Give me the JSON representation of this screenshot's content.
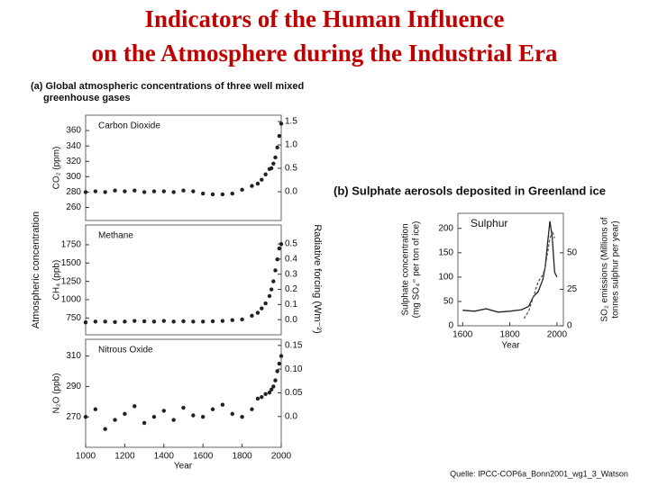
{
  "title": [
    "Indicators of the Human Influence",
    "on the Atmosphere during the Industrial Era"
  ],
  "panel_a": {
    "heading": [
      "(a) Global atmospheric concentrations of three well mixed",
      "greenhouse gases"
    ],
    "ylabel": "Atmospheric concentration",
    "y2label": "Radiative forcing  (Wm⁻²)",
    "xlabel": "Year"
  },
  "panel_b": {
    "heading": "(b)  Sulphate aerosols deposited in Greenland ice"
  },
  "source": "Quelle: IPCC-COP6a_Bonn2001_wg1_3_Watson",
  "chart_data": [
    {
      "type": "scatter",
      "label": "Carbon Dioxide",
      "ylabel": "CO₂  (ppm)",
      "xlim": [
        1000,
        2000
      ],
      "ylim": [
        243,
        380
      ],
      "yticks": [
        260,
        280,
        300,
        320,
        340,
        360
      ],
      "y2lim": [
        -0.615,
        1.635
      ],
      "y2ticks": [
        {
          "value": 0,
          "label": "0.0"
        },
        0.5,
        {
          "value": 1,
          "label": "1.0"
        },
        1.5
      ],
      "series": [
        {
          "color": "#222222",
          "x": [
            1000,
            1050,
            1100,
            1150,
            1200,
            1250,
            1300,
            1350,
            1400,
            1450,
            1500,
            1550,
            1600,
            1650,
            1700,
            1750,
            1800,
            1850,
            1880,
            1900,
            1920,
            1940,
            1950,
            1960,
            1970,
            1980,
            1990,
            2000
          ],
          "values": [
            280,
            281,
            280,
            282,
            281,
            282,
            280,
            281,
            281,
            280,
            282,
            281,
            278,
            277,
            277,
            278,
            283,
            288,
            291,
            296,
            303,
            310,
            311,
            317,
            325,
            338,
            353,
            369
          ]
        }
      ]
    },
    {
      "type": "scatter",
      "label": "Methane",
      "ylabel": "CH₄  (ppb)",
      "xlim": [
        1000,
        2000
      ],
      "ylim": [
        520,
        2020
      ],
      "yticks": [
        750,
        1000,
        1250,
        1500,
        1750
      ],
      "y2lim": [
        -0.1,
        0.625
      ],
      "y2ticks": [
        {
          "value": 0,
          "label": "0.0"
        },
        0.1,
        0.2,
        0.3,
        0.4,
        0.5
      ],
      "series": [
        {
          "color": "#222222",
          "x": [
            1000,
            1050,
            1100,
            1150,
            1200,
            1250,
            1300,
            1350,
            1400,
            1450,
            1500,
            1550,
            1600,
            1650,
            1700,
            1750,
            1800,
            1850,
            1880,
            1900,
            1920,
            1940,
            1950,
            1960,
            1970,
            1980,
            1990,
            2000
          ],
          "values": [
            690,
            700,
            700,
            695,
            700,
            710,
            705,
            700,
            710,
            700,
            705,
            700,
            700,
            705,
            710,
            720,
            730,
            780,
            820,
            880,
            950,
            1050,
            1140,
            1250,
            1400,
            1550,
            1700,
            1760
          ]
        }
      ]
    },
    {
      "type": "scatter",
      "label": "Nitrous Oxide",
      "ylabel": "N₂O  (ppb)",
      "xlim": [
        1000,
        2000
      ],
      "ylim": [
        250,
        321
      ],
      "yticks": [
        270,
        290,
        310
      ],
      "xticks": [
        1000,
        1200,
        1400,
        1600,
        1800,
        2000
      ],
      "y2lim": [
        -0.065,
        0.163
      ],
      "y2ticks": [
        {
          "value": 0,
          "label": "0.0"
        },
        0.05,
        {
          "value": 0.1,
          "label": "0.10"
        },
        0.15
      ],
      "series": [
        {
          "color": "#222222",
          "x": [
            1000,
            1050,
            1100,
            1150,
            1200,
            1250,
            1300,
            1350,
            1400,
            1450,
            1500,
            1550,
            1600,
            1650,
            1700,
            1750,
            1800,
            1850,
            1880,
            1900,
            1920,
            1940,
            1950,
            1960,
            1970,
            1980,
            1990,
            2000
          ],
          "values": [
            270,
            275,
            262,
            268,
            272,
            277,
            266,
            270,
            274,
            268,
            276,
            271,
            270,
            275,
            278,
            272,
            270,
            275,
            282,
            283,
            285,
            286,
            288,
            290,
            294,
            300,
            305,
            310
          ]
        }
      ]
    },
    {
      "type": "line",
      "label": "Sulphur",
      "ylabel": [
        "Sulphate concentration",
        "(mg SO₄⁼  per ton of ice)"
      ],
      "y2label": [
        "SO₂ emissions (Millions of",
        "tonnes sulphur per year)"
      ],
      "xlabel": "Year",
      "xlim": [
        1580,
        2027
      ],
      "ylim": [
        0,
        231
      ],
      "yticks": [
        0,
        50,
        100,
        150,
        200
      ],
      "xticks": [
        1600,
        1800,
        2000
      ],
      "y2lim": [
        0,
        77
      ],
      "y2ticks": [
        0,
        25,
        50
      ],
      "series": [
        {
          "color": "#222222",
          "x": [
            1600,
            1650,
            1700,
            1750,
            1800,
            1850,
            1880,
            1900,
            1920,
            1940,
            1950,
            1960,
            1970,
            1980,
            1990,
            2000
          ],
          "values": [
            32,
            30,
            35,
            28,
            30,
            33,
            40,
            60,
            70,
            95,
            120,
            170,
            215,
            180,
            110,
            100
          ]
        },
        {
          "color": "#555555",
          "axis": "y2",
          "x": [
            1860,
            1880,
            1900,
            1920,
            1940,
            1950,
            1960,
            1970,
            1980,
            1990
          ],
          "values": [
            5,
            10,
            20,
            30,
            35,
            40,
            50,
            60,
            65,
            60
          ]
        }
      ]
    }
  ]
}
